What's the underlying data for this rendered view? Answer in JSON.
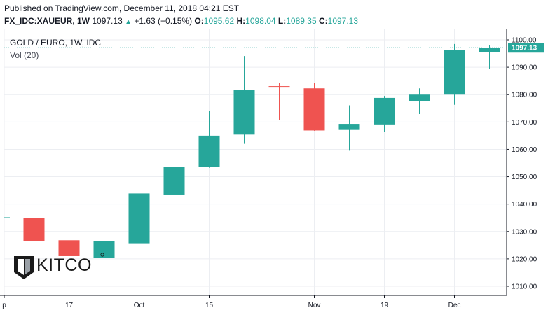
{
  "header": {
    "published": "Published on TradingView.com, December 11, 2018 04:21 EST",
    "symbol": "FX_IDC:XAUEUR, 1W",
    "last": "1097.13",
    "change": "+1.63 (+0.15%)",
    "o_label": "O:",
    "o_value": "1095.62",
    "h_label": "H:",
    "h_value": "1098.04",
    "l_label": "L:",
    "l_value": "1089.35",
    "c_label": "C:",
    "c_value": "1097.13"
  },
  "legend": {
    "title": "GOLD / EURO, 1W, IDC",
    "volume": "Vol (20)"
  },
  "watermark": {
    "brand": "KITCO"
  },
  "colors": {
    "up": "#26a69a",
    "down": "#ef5350",
    "grid": "#eceef2",
    "axis": "#131722",
    "price_line": "#26a69a"
  },
  "chart_data": {
    "type": "candlestick",
    "title": "GOLD / EURO, 1W, IDC",
    "ylim": [
      1006,
      1103
    ],
    "y_ticks": [
      "1010.00",
      "1020.00",
      "1030.00",
      "1040.00",
      "1050.00",
      "1060.00",
      "1070.00",
      "1080.00",
      "1090.00",
      "1100.00"
    ],
    "y_tick_values": [
      1010,
      1020,
      1030,
      1040,
      1050,
      1060,
      1070,
      1080,
      1090,
      1100
    ],
    "x_ticks": [
      {
        "label": "p",
        "index": -0.85
      },
      {
        "label": "17",
        "index": 1
      },
      {
        "label": "Oct",
        "index": 3
      },
      {
        "label": "15",
        "index": 5
      },
      {
        "label": "Nov",
        "index": 8
      },
      {
        "label": "19",
        "index": 10
      },
      {
        "label": "Dec",
        "index": 12
      }
    ],
    "last_price": 1097.13,
    "last_price_label": "1097.13",
    "candles": [
      {
        "o": 1034.8,
        "h": 1039.3,
        "l": 1026.0,
        "c": 1026.4
      },
      {
        "o": 1026.8,
        "h": 1033.3,
        "l": 1020.2,
        "c": 1021.0
      },
      {
        "o": 1020.4,
        "h": 1028.2,
        "l": 1012.2,
        "c": 1026.5
      },
      {
        "o": 1025.7,
        "h": 1046.3,
        "l": 1020.7,
        "c": 1043.9
      },
      {
        "o": 1043.5,
        "h": 1059.1,
        "l": 1028.9,
        "c": 1053.6
      },
      {
        "o": 1053.5,
        "h": 1074.0,
        "l": 1053.3,
        "c": 1065.0
      },
      {
        "o": 1065.4,
        "h": 1094.1,
        "l": 1062.0,
        "c": 1081.8
      },
      {
        "o": 1083.1,
        "h": 1084.4,
        "l": 1070.8,
        "c": 1082.6
      },
      {
        "o": 1082.3,
        "h": 1084.3,
        "l": 1066.8,
        "c": 1066.9
      },
      {
        "o": 1067.1,
        "h": 1076.1,
        "l": 1059.5,
        "c": 1069.3
      },
      {
        "o": 1069.1,
        "h": 1079.5,
        "l": 1066.3,
        "c": 1078.8
      },
      {
        "o": 1077.6,
        "h": 1082.3,
        "l": 1072.9,
        "c": 1080.0
      },
      {
        "o": 1080.0,
        "h": 1098.5,
        "l": 1076.3,
        "c": 1096.2
      },
      {
        "o": 1095.62,
        "h": 1098.04,
        "l": 1089.35,
        "c": 1097.13
      }
    ]
  }
}
